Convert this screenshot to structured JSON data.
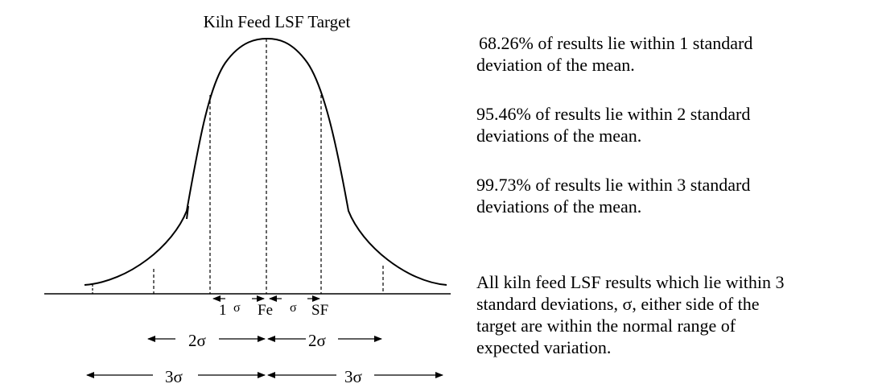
{
  "diagram": {
    "title": "Kiln Feed LSF Target",
    "sigma_labels": {
      "left_1": "1",
      "sigma_a": "σ",
      "center": "Fe",
      "sigma_b": "σ",
      "right_1": "SF",
      "left_2": "2σ",
      "right_2": "2σ",
      "left_3": "3σ",
      "right_3": "3σ"
    }
  },
  "notes": [
    {
      "line1": "68.26% of results lie within 1 standard",
      "line2": "deviation of the mean."
    },
    {
      "line1": "95.46% of results lie within 2 standard",
      "line2": "deviations of the mean."
    },
    {
      "line1": "99.73% of results lie within 3 standard",
      "line2": "deviations of the mean."
    },
    {
      "line1": "All kiln feed LSF results which lie within 3",
      "line2": "standard deviations, σ, either side of the",
      "line3": "target are within the normal range of",
      "line4": "expected variation."
    }
  ]
}
